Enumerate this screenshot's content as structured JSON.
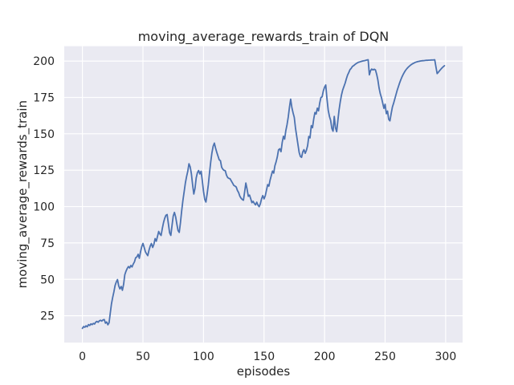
{
  "chart_data": {
    "type": "line",
    "title": "moving_average_rewards_train of DQN",
    "xlabel": "episodes",
    "ylabel": "moving_average_rewards_train",
    "x_ticks": [
      0,
      50,
      100,
      150,
      200,
      250,
      300
    ],
    "y_ticks": [
      25,
      50,
      75,
      100,
      125,
      150,
      175,
      200
    ],
    "xlim": [
      -15,
      314
    ],
    "ylim": [
      6.5,
      210.2
    ],
    "grid": true,
    "legend": "none",
    "style": {
      "figure_background": "#ffffff",
      "axes_background": "#eaeaf2",
      "grid_color": "#ffffff",
      "line_color": "#4c72b0",
      "text_color": "#262626"
    },
    "series": [
      {
        "name": "moving_average_rewards_train",
        "points": [
          [
            0,
            16.3
          ],
          [
            1,
            17.6
          ],
          [
            2,
            17.1
          ],
          [
            3,
            18.1
          ],
          [
            4,
            17.4
          ],
          [
            5,
            18.9
          ],
          [
            6,
            18.3
          ],
          [
            7,
            19.4
          ],
          [
            8,
            18.9
          ],
          [
            9,
            19.7
          ],
          [
            10,
            19.3
          ],
          [
            11,
            20.6
          ],
          [
            12,
            21.1
          ],
          [
            13,
            20.5
          ],
          [
            14,
            21.5
          ],
          [
            15,
            21.9
          ],
          [
            16,
            21.3
          ],
          [
            17,
            22.1
          ],
          [
            18,
            22.4
          ],
          [
            19,
            19.9
          ],
          [
            20,
            20.7
          ],
          [
            21,
            18.8
          ],
          [
            22,
            20.1
          ],
          [
            23,
            26.8
          ],
          [
            24,
            33.2
          ],
          [
            25,
            37.6
          ],
          [
            26,
            41.4
          ],
          [
            27,
            45.8
          ],
          [
            28,
            48.2
          ],
          [
            29,
            49.8
          ],
          [
            30,
            45.5
          ],
          [
            31,
            43.4
          ],
          [
            32,
            45.1
          ],
          [
            33,
            42.5
          ],
          [
            34,
            46.5
          ],
          [
            35,
            53.2
          ],
          [
            36,
            55.6
          ],
          [
            37,
            57.5
          ],
          [
            38,
            58.8
          ],
          [
            39,
            57.8
          ],
          [
            40,
            59.5
          ],
          [
            41,
            58.5
          ],
          [
            42,
            60.5
          ],
          [
            43,
            62.0
          ],
          [
            44,
            64.8
          ],
          [
            45,
            65.4
          ],
          [
            46,
            67.2
          ],
          [
            47,
            64.5
          ],
          [
            48,
            69.0
          ],
          [
            49,
            72.5
          ],
          [
            50,
            74.7
          ],
          [
            51,
            72.0
          ],
          [
            52,
            69.0
          ],
          [
            53,
            67.5
          ],
          [
            54,
            66.3
          ],
          [
            55,
            70.0
          ],
          [
            56,
            72.8
          ],
          [
            57,
            74.6
          ],
          [
            58,
            71.9
          ],
          [
            59,
            74.0
          ],
          [
            60,
            78.0
          ],
          [
            61,
            76.2
          ],
          [
            62,
            79.5
          ],
          [
            63,
            82.9
          ],
          [
            64,
            81.2
          ],
          [
            65,
            80.2
          ],
          [
            66,
            85.0
          ],
          [
            67,
            89.0
          ],
          [
            68,
            92.0
          ],
          [
            69,
            94.0
          ],
          [
            70,
            94.5
          ],
          [
            71,
            88.0
          ],
          [
            72,
            82.0
          ],
          [
            73,
            80.2
          ],
          [
            74,
            87.0
          ],
          [
            75,
            93.5
          ],
          [
            76,
            96.0
          ],
          [
            77,
            93.0
          ],
          [
            78,
            88.0
          ],
          [
            79,
            83.5
          ],
          [
            80,
            82.3
          ],
          [
            81,
            89.0
          ],
          [
            82,
            97.0
          ],
          [
            83,
            104.0
          ],
          [
            84,
            110.2
          ],
          [
            85,
            116.2
          ],
          [
            86,
            120.6
          ],
          [
            87,
            124.2
          ],
          [
            88,
            129.4
          ],
          [
            89,
            127.3
          ],
          [
            90,
            122.5
          ],
          [
            91,
            115.1
          ],
          [
            92,
            108.6
          ],
          [
            93,
            112.5
          ],
          [
            94,
            119.7
          ],
          [
            95,
            123.3
          ],
          [
            96,
            124.8
          ],
          [
            97,
            122.4
          ],
          [
            98,
            124.3
          ],
          [
            99,
            117.8
          ],
          [
            100,
            110.5
          ],
          [
            101,
            105.0
          ],
          [
            102,
            103.1
          ],
          [
            103,
            108.6
          ],
          [
            104,
            115.1
          ],
          [
            105,
            123.3
          ],
          [
            106,
            130.7
          ],
          [
            107,
            137.0
          ],
          [
            108,
            141.5
          ],
          [
            109,
            143.6
          ],
          [
            110,
            140.2
          ],
          [
            111,
            137.1
          ],
          [
            112,
            134.6
          ],
          [
            113,
            132.1
          ],
          [
            114,
            131.5
          ],
          [
            115,
            127.1
          ],
          [
            116,
            125.6
          ],
          [
            117,
            124.9
          ],
          [
            118,
            124.6
          ],
          [
            119,
            121.6
          ],
          [
            120,
            119.9
          ],
          [
            121,
            119.4
          ],
          [
            122,
            119.1
          ],
          [
            123,
            117.6
          ],
          [
            124,
            116.1
          ],
          [
            125,
            114.6
          ],
          [
            126,
            114.1
          ],
          [
            127,
            113.5
          ],
          [
            128,
            111.1
          ],
          [
            129,
            109.6
          ],
          [
            130,
            107.2
          ],
          [
            131,
            105.8
          ],
          [
            132,
            104.9
          ],
          [
            133,
            104.4
          ],
          [
            134,
            110.1
          ],
          [
            135,
            116.2
          ],
          [
            136,
            112.1
          ],
          [
            137,
            107.1
          ],
          [
            138,
            107.9
          ],
          [
            139,
            105.3
          ],
          [
            140,
            102.7
          ],
          [
            141,
            103.6
          ],
          [
            142,
            102.1
          ],
          [
            143,
            101.2
          ],
          [
            144,
            103.0
          ],
          [
            145,
            101.0
          ],
          [
            146,
            99.9
          ],
          [
            147,
            102.0
          ],
          [
            148,
            105.4
          ],
          [
            149,
            107.6
          ],
          [
            150,
            105.3
          ],
          [
            151,
            107.4
          ],
          [
            152,
            111.2
          ],
          [
            153,
            115.1
          ],
          [
            154,
            114.0
          ],
          [
            155,
            118.2
          ],
          [
            156,
            121.3
          ],
          [
            157,
            124.4
          ],
          [
            158,
            123.0
          ],
          [
            159,
            128.1
          ],
          [
            160,
            130.8
          ],
          [
            161,
            134.2
          ],
          [
            162,
            139.0
          ],
          [
            163,
            139.7
          ],
          [
            164,
            137.7
          ],
          [
            165,
            144.1
          ],
          [
            166,
            148.3
          ],
          [
            167,
            146.3
          ],
          [
            168,
            152.2
          ],
          [
            169,
            156.3
          ],
          [
            170,
            161.5
          ],
          [
            171,
            168.2
          ],
          [
            172,
            173.8
          ],
          [
            173,
            168.1
          ],
          [
            174,
            164.4
          ],
          [
            175,
            161.3
          ],
          [
            176,
            153.6
          ],
          [
            177,
            148.1
          ],
          [
            178,
            142.6
          ],
          [
            179,
            137.2
          ],
          [
            180,
            134.5
          ],
          [
            181,
            133.8
          ],
          [
            182,
            137.6
          ],
          [
            183,
            139.1
          ],
          [
            184,
            136.6
          ],
          [
            185,
            138.6
          ],
          [
            186,
            141.8
          ],
          [
            187,
            148.2
          ],
          [
            188,
            147.2
          ],
          [
            189,
            155.6
          ],
          [
            190,
            154.2
          ],
          [
            191,
            160.1
          ],
          [
            192,
            164.6
          ],
          [
            193,
            163.6
          ],
          [
            194,
            167.6
          ],
          [
            195,
            165.8
          ],
          [
            196,
            171.2
          ],
          [
            197,
            174.9
          ],
          [
            198,
            175.5
          ],
          [
            199,
            179.5
          ],
          [
            200,
            182.0
          ],
          [
            201,
            183.6
          ],
          [
            202,
            174.2
          ],
          [
            203,
            166.1
          ],
          [
            204,
            162.0
          ],
          [
            205,
            159.2
          ],
          [
            206,
            153.7
          ],
          [
            207,
            151.8
          ],
          [
            208,
            162.0
          ],
          [
            209,
            154.1
          ],
          [
            210,
            151.5
          ],
          [
            211,
            159.2
          ],
          [
            212,
            166.5
          ],
          [
            213,
            172.1
          ],
          [
            214,
            176.7
          ],
          [
            215,
            180.1
          ],
          [
            216,
            182.6
          ],
          [
            217,
            184.9
          ],
          [
            218,
            187.9
          ],
          [
            219,
            190.4
          ],
          [
            220,
            192.1
          ],
          [
            221,
            194.1
          ],
          [
            222,
            195.0
          ],
          [
            223,
            196.3
          ],
          [
            224,
            196.8
          ],
          [
            225,
            197.5
          ],
          [
            226,
            198.2
          ],
          [
            227,
            198.7
          ],
          [
            228,
            199.2
          ],
          [
            229,
            199.4
          ],
          [
            230,
            199.7
          ],
          [
            231,
            199.9
          ],
          [
            232,
            200.1
          ],
          [
            233,
            200.3
          ],
          [
            234,
            200.5
          ],
          [
            235,
            200.7
          ],
          [
            236,
            200.9
          ],
          [
            237,
            190.5
          ],
          [
            238,
            193.4
          ],
          [
            239,
            194.5
          ],
          [
            240,
            193.9
          ],
          [
            241,
            194.4
          ],
          [
            242,
            193.9
          ],
          [
            243,
            190.9
          ],
          [
            244,
            187.0
          ],
          [
            245,
            181.5
          ],
          [
            246,
            177.5
          ],
          [
            247,
            174.8
          ],
          [
            248,
            171.2
          ],
          [
            249,
            167.5
          ],
          [
            250,
            170.3
          ],
          [
            251,
            163.8
          ],
          [
            252,
            165.6
          ],
          [
            253,
            160.0
          ],
          [
            254,
            158.9
          ],
          [
            255,
            164.0
          ],
          [
            256,
            168.4
          ],
          [
            257,
            171.0
          ],
          [
            258,
            174.0
          ],
          [
            259,
            177.0
          ],
          [
            260,
            180.0
          ],
          [
            261,
            182.5
          ],
          [
            262,
            185.0
          ],
          [
            263,
            187.2
          ],
          [
            264,
            189.2
          ],
          [
            265,
            190.9
          ],
          [
            266,
            192.4
          ],
          [
            267,
            193.7
          ],
          [
            268,
            194.8
          ],
          [
            269,
            195.7
          ],
          [
            270,
            196.5
          ],
          [
            271,
            197.2
          ],
          [
            272,
            197.8
          ],
          [
            273,
            198.3
          ],
          [
            274,
            198.7
          ],
          [
            275,
            199.1
          ],
          [
            276,
            199.4
          ],
          [
            277,
            199.6
          ],
          [
            278,
            199.8
          ],
          [
            279,
            200.0
          ],
          [
            280,
            200.1
          ],
          [
            281,
            200.2
          ],
          [
            282,
            200.3
          ],
          [
            283,
            200.4
          ],
          [
            284,
            200.5
          ],
          [
            285,
            200.5
          ],
          [
            286,
            200.6
          ],
          [
            287,
            200.6
          ],
          [
            288,
            200.7
          ],
          [
            289,
            200.7
          ],
          [
            290,
            200.8
          ],
          [
            291,
            200.9
          ],
          [
            292,
            196.0
          ],
          [
            293,
            191.4
          ],
          [
            294,
            192.3
          ],
          [
            295,
            193.4
          ],
          [
            296,
            194.4
          ],
          [
            297,
            195.3
          ],
          [
            298,
            196.1
          ],
          [
            299,
            196.8
          ]
        ]
      }
    ]
  }
}
